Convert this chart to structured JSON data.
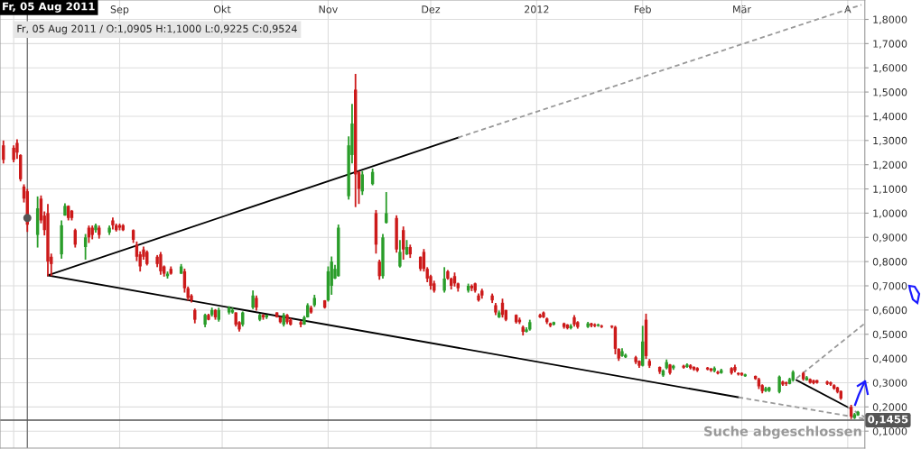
{
  "chart_data": {
    "type": "candlestick",
    "title": "Fr, 05 Aug 2011",
    "subtitle": "Fr, 05 Aug 2011 / O:1,0905 H:1,1000 L:0,9225 C:0,9524",
    "x": [
      "2011-07-29",
      "2011-08-01",
      "2011-08-02",
      "2011-08-03",
      "2011-08-04",
      "2011-08-05",
      "2011-08-08",
      "2011-08-09",
      "2011-08-10",
      "2011-08-11",
      "2011-08-12",
      "2011-08-15",
      "2011-08-16",
      "2011-08-17",
      "2011-08-18",
      "2011-08-19",
      "2011-08-22",
      "2011-08-23",
      "2011-08-24",
      "2011-08-25",
      "2011-08-26",
      "2011-08-29",
      "2011-08-30",
      "2011-08-31",
      "2011-09-01",
      "2011-09-02",
      "2011-09-05",
      "2011-09-06",
      "2011-09-07",
      "2011-09-08",
      "2011-09-09",
      "2011-09-12",
      "2011-09-13",
      "2011-09-14",
      "2011-09-15",
      "2011-09-16",
      "2011-09-19",
      "2011-09-20",
      "2011-09-21",
      "2011-09-22",
      "2011-09-23",
      "2011-09-26",
      "2011-09-27",
      "2011-09-28",
      "2011-09-29",
      "2011-09-30",
      "2011-10-03",
      "2011-10-04",
      "2011-10-05",
      "2011-10-06",
      "2011-10-07",
      "2011-10-10",
      "2011-10-11",
      "2011-10-12",
      "2011-10-13",
      "2011-10-14",
      "2011-10-17",
      "2011-10-18",
      "2011-10-19",
      "2011-10-20",
      "2011-10-21",
      "2011-10-24",
      "2011-10-25",
      "2011-10-26",
      "2011-10-27",
      "2011-10-28",
      "2011-10-31",
      "2011-11-01",
      "2011-11-02",
      "2011-11-03",
      "2011-11-04",
      "2011-11-07",
      "2011-11-08",
      "2011-11-09",
      "2011-11-10",
      "2011-11-11",
      "2011-11-14",
      "2011-11-15",
      "2011-11-16",
      "2011-11-17",
      "2011-11-18",
      "2011-11-21",
      "2011-11-22",
      "2011-11-23",
      "2011-11-24",
      "2011-11-25",
      "2011-11-28",
      "2011-11-29",
      "2011-11-30",
      "2011-12-01",
      "2011-12-02",
      "2011-12-05",
      "2011-12-06",
      "2011-12-07",
      "2011-12-08",
      "2011-12-09",
      "2011-12-12",
      "2011-12-13",
      "2011-12-14",
      "2011-12-15",
      "2011-12-16",
      "2011-12-19",
      "2011-12-20",
      "2011-12-21",
      "2011-12-22",
      "2011-12-23",
      "2011-12-26",
      "2011-12-27",
      "2011-12-28",
      "2011-12-29",
      "2011-12-30",
      "2012-01-02",
      "2012-01-03",
      "2012-01-04",
      "2012-01-05",
      "2012-01-06",
      "2012-01-09",
      "2012-01-10",
      "2012-01-11",
      "2012-01-12",
      "2012-01-13",
      "2012-01-16",
      "2012-01-17",
      "2012-01-18",
      "2012-01-19",
      "2012-01-20",
      "2012-01-23",
      "2012-01-24",
      "2012-01-25",
      "2012-01-26",
      "2012-01-27",
      "2012-01-30",
      "2012-01-31",
      "2012-02-01",
      "2012-02-02",
      "2012-02-03",
      "2012-02-06",
      "2012-02-07",
      "2012-02-08",
      "2012-02-09",
      "2012-02-10",
      "2012-02-13",
      "2012-02-14",
      "2012-02-15",
      "2012-02-16",
      "2012-02-17",
      "2012-02-20",
      "2012-02-21",
      "2012-02-22",
      "2012-02-23",
      "2012-02-24",
      "2012-02-27",
      "2012-02-28",
      "2012-02-29",
      "2012-03-01",
      "2012-03-02",
      "2012-03-05",
      "2012-03-06",
      "2012-03-07",
      "2012-03-08",
      "2012-03-09",
      "2012-03-12",
      "2012-03-13",
      "2012-03-14",
      "2012-03-15",
      "2012-03-16",
      "2012-03-19",
      "2012-03-20",
      "2012-03-21",
      "2012-03-22",
      "2012-03-23",
      "2012-03-26",
      "2012-03-27",
      "2012-03-28",
      "2012-03-29",
      "2012-03-30",
      "2012-04-02",
      "2012-04-03",
      "2012-04-04"
    ],
    "ohlc": [
      [
        1.28,
        1.3,
        1.205,
        1.22
      ],
      [
        1.27,
        1.28,
        1.21,
        1.22
      ],
      [
        1.29,
        1.305,
        1.224,
        1.25
      ],
      [
        1.24,
        1.243,
        1.131,
        1.14
      ],
      [
        1.11,
        1.119,
        1.044,
        1.06
      ],
      [
        1.0905,
        1.1,
        0.9225,
        0.9524
      ],
      [
        0.91,
        1.069,
        0.858,
        1.02
      ],
      [
        1.06,
        1.073,
        0.958,
        0.97
      ],
      [
        0.99,
        1.007,
        0.908,
        0.93
      ],
      [
        1.0,
        1.038,
        0.74,
        0.8
      ],
      [
        0.82,
        0.833,
        0.74,
        0.79
      ],
      [
        0.83,
        0.97,
        0.812,
        0.95
      ],
      [
        0.99,
        1.041,
        0.989,
        1.03
      ],
      [
        1.03,
        1.032,
        0.97,
        0.98
      ],
      [
        1.01,
        1.013,
        0.97,
        0.98
      ],
      [
        0.93,
        0.936,
        0.858,
        0.87
      ],
      [
        0.86,
        0.914,
        0.808,
        0.9
      ],
      [
        0.94,
        0.949,
        0.877,
        0.9
      ],
      [
        0.94,
        0.949,
        0.892,
        0.91
      ],
      [
        0.93,
        0.957,
        0.92,
        0.95
      ],
      [
        0.94,
        0.949,
        0.895,
        0.91
      ],
      [
        0.92,
        0.949,
        0.91,
        0.94
      ],
      [
        0.97,
        0.982,
        0.933,
        0.95
      ],
      [
        0.95,
        0.957,
        0.924,
        0.93
      ],
      [
        0.95,
        0.957,
        0.929,
        0.94
      ],
      [
        0.95,
        0.955,
        0.926,
        0.93
      ],
      [
        0.93,
        0.933,
        0.877,
        0.89
      ],
      [
        0.87,
        0.883,
        0.802,
        0.82
      ],
      [
        0.83,
        0.842,
        0.759,
        0.78
      ],
      [
        0.85,
        0.862,
        0.808,
        0.82
      ],
      [
        0.84,
        0.846,
        0.784,
        0.79
      ],
      [
        0.82,
        0.827,
        0.777,
        0.79
      ],
      [
        0.83,
        0.84,
        0.746,
        0.76
      ],
      [
        0.78,
        0.784,
        0.738,
        0.75
      ],
      [
        0.74,
        0.759,
        0.73,
        0.75
      ],
      [
        0.77,
        0.78,
        0.746,
        0.75
      ],
      [
        0.75,
        0.79,
        0.749,
        0.78
      ],
      [
        0.76,
        0.771,
        0.672,
        0.69
      ],
      [
        0.69,
        0.697,
        0.639,
        0.65
      ],
      [
        0.66,
        0.666,
        0.631,
        0.64
      ],
      [
        0.6,
        0.606,
        0.545,
        0.56
      ],
      [
        0.54,
        0.585,
        0.529,
        0.58
      ],
      [
        0.58,
        0.585,
        0.558,
        0.56
      ],
      [
        0.58,
        0.61,
        0.573,
        0.6
      ],
      [
        0.6,
        0.604,
        0.56,
        0.57
      ],
      [
        0.56,
        0.61,
        0.552,
        0.6
      ],
      [
        0.59,
        0.616,
        0.582,
        0.61
      ],
      [
        0.59,
        0.61,
        0.585,
        0.6
      ],
      [
        0.59,
        0.591,
        0.532,
        0.54
      ],
      [
        0.55,
        0.554,
        0.511,
        0.52
      ],
      [
        0.54,
        0.594,
        0.532,
        0.59
      ],
      [
        0.61,
        0.681,
        0.604,
        0.66
      ],
      [
        0.65,
        0.66,
        0.598,
        0.61
      ],
      [
        0.56,
        0.585,
        0.554,
        0.58
      ],
      [
        0.58,
        0.583,
        0.56,
        0.57
      ],
      [
        0.57,
        0.581,
        0.563,
        0.58
      ],
      [
        0.59,
        0.591,
        0.569,
        0.57
      ],
      [
        0.57,
        0.573,
        0.545,
        0.55
      ],
      [
        0.54,
        0.588,
        0.532,
        0.58
      ],
      [
        0.58,
        0.584,
        0.542,
        0.55
      ],
      [
        0.56,
        0.567,
        0.536,
        0.54
      ],
      [
        0.55,
        0.556,
        0.529,
        0.54
      ],
      [
        0.54,
        0.576,
        0.539,
        0.57
      ],
      [
        0.57,
        0.628,
        0.569,
        0.62
      ],
      [
        0.61,
        0.618,
        0.585,
        0.59
      ],
      [
        0.62,
        0.663,
        0.613,
        0.65
      ],
      [
        0.64,
        0.641,
        0.606,
        0.61
      ],
      [
        0.64,
        0.78,
        0.635,
        0.76
      ],
      [
        0.7,
        0.821,
        0.663,
        0.8
      ],
      [
        0.73,
        0.787,
        0.728,
        0.77
      ],
      [
        0.74,
        0.953,
        0.738,
        0.94
      ],
      [
        1.07,
        1.317,
        1.056,
        1.28
      ],
      [
        1.24,
        1.451,
        1.205,
        1.37
      ],
      [
        1.51,
        1.575,
        1.025,
        1.16
      ],
      [
        1.17,
        1.174,
        1.038,
        1.1
      ],
      [
        1.09,
        1.174,
        1.075,
        1.16
      ],
      [
        1.12,
        1.184,
        1.115,
        1.17
      ],
      [
        1.0,
        1.013,
        0.833,
        0.87
      ],
      [
        0.8,
        0.808,
        0.725,
        0.74
      ],
      [
        0.74,
        0.914,
        0.73,
        0.9
      ],
      [
        0.96,
        1.087,
        0.957,
        1.0
      ],
      [
        0.98,
        0.991,
        0.837,
        0.85
      ],
      [
        0.78,
        0.889,
        0.775,
        0.84
      ],
      [
        0.93,
        0.945,
        0.808,
        0.85
      ],
      [
        0.83,
        0.889,
        0.827,
        0.86
      ],
      [
        0.86,
        0.87,
        0.815,
        0.83
      ],
      [
        0.82,
        0.821,
        0.761,
        0.77
      ],
      [
        0.84,
        0.852,
        0.759,
        0.77
      ],
      [
        0.77,
        0.777,
        0.715,
        0.73
      ],
      [
        0.74,
        0.746,
        0.684,
        0.7
      ],
      [
        0.71,
        0.721,
        0.672,
        0.68
      ],
      [
        0.68,
        0.777,
        0.672,
        0.73
      ],
      [
        0.76,
        0.765,
        0.725,
        0.73
      ],
      [
        0.73,
        0.734,
        0.685,
        0.7
      ],
      [
        0.74,
        0.755,
        0.697,
        0.71
      ],
      [
        0.71,
        0.713,
        0.676,
        0.69
      ],
      [
        0.68,
        0.709,
        0.672,
        0.7
      ],
      [
        0.7,
        0.706,
        0.678,
        0.69
      ],
      [
        0.71,
        0.713,
        0.672,
        0.68
      ],
      [
        0.66,
        0.668,
        0.635,
        0.64
      ],
      [
        0.68,
        0.688,
        0.647,
        0.66
      ],
      [
        0.66,
        0.668,
        0.629,
        0.64
      ],
      [
        0.62,
        0.629,
        0.579,
        0.59
      ],
      [
        0.57,
        0.598,
        0.567,
        0.59
      ],
      [
        0.63,
        0.647,
        0.569,
        0.58
      ],
      [
        0.6,
        0.601,
        0.554,
        0.56
      ],
      [
        0.58,
        0.582,
        0.544,
        0.55
      ],
      [
        0.56,
        0.569,
        0.542,
        0.55
      ],
      [
        0.53,
        0.536,
        0.495,
        0.51
      ],
      [
        0.51,
        0.529,
        0.507,
        0.52
      ],
      [
        0.52,
        0.56,
        0.515,
        0.55
      ],
      [
        0.58,
        0.585,
        0.567,
        0.57
      ],
      [
        0.59,
        0.594,
        0.567,
        0.57
      ],
      [
        0.565,
        0.569,
        0.542,
        0.55
      ],
      [
        0.545,
        0.548,
        0.529,
        0.535
      ],
      [
        0.54,
        0.552,
        0.536,
        0.55
      ],
      [
        0.545,
        0.548,
        0.523,
        0.53
      ],
      [
        0.54,
        0.542,
        0.52,
        0.525
      ],
      [
        0.525,
        0.542,
        0.52,
        0.535
      ],
      [
        0.57,
        0.579,
        0.532,
        0.54
      ],
      [
        0.55,
        0.554,
        0.523,
        0.53
      ],
      [
        0.53,
        0.551,
        0.526,
        0.545
      ],
      [
        0.545,
        0.547,
        0.529,
        0.535
      ],
      [
        0.54,
        0.545,
        0.529,
        0.535
      ],
      [
        0.535,
        0.544,
        0.531,
        0.54
      ],
      [
        0.535,
        0.539,
        0.526,
        0.53
      ],
      [
        0.535,
        0.537,
        0.524,
        0.53
      ],
      [
        0.53,
        0.535,
        0.417,
        0.44
      ],
      [
        0.44,
        0.442,
        0.39,
        0.4
      ],
      [
        0.41,
        0.442,
        0.407,
        0.43
      ],
      [
        0.405,
        0.42,
        0.402,
        0.415
      ],
      [
        0.405,
        0.411,
        0.377,
        0.385
      ],
      [
        0.39,
        0.392,
        0.361,
        0.37
      ],
      [
        0.37,
        0.535,
        0.367,
        0.47
      ],
      [
        0.56,
        0.585,
        0.398,
        0.41
      ],
      [
        0.39,
        0.398,
        0.361,
        0.37
      ],
      [
        0.365,
        0.367,
        0.336,
        0.345
      ],
      [
        0.33,
        0.355,
        0.324,
        0.35
      ],
      [
        0.36,
        0.396,
        0.355,
        0.385
      ],
      [
        0.375,
        0.377,
        0.333,
        0.34
      ],
      [
        0.36,
        0.374,
        0.353,
        0.37
      ],
      [
        0.37,
        0.374,
        0.358,
        0.362
      ],
      [
        0.365,
        0.38,
        0.361,
        0.375
      ],
      [
        0.372,
        0.376,
        0.355,
        0.36
      ],
      [
        0.365,
        0.368,
        0.349,
        0.355
      ],
      [
        0.36,
        0.364,
        0.345,
        0.35
      ],
      [
        0.362,
        0.365,
        0.351,
        0.355
      ],
      [
        0.358,
        0.361,
        0.345,
        0.35
      ],
      [
        0.348,
        0.367,
        0.343,
        0.36
      ],
      [
        0.345,
        0.349,
        0.334,
        0.338
      ],
      [
        0.34,
        0.358,
        0.337,
        0.352
      ],
      [
        0.36,
        0.364,
        0.333,
        0.34
      ],
      [
        0.365,
        0.374,
        0.343,
        0.35
      ],
      [
        0.34,
        0.343,
        0.33,
        0.334
      ],
      [
        0.34,
        0.343,
        0.328,
        0.332
      ],
      [
        0.327,
        0.337,
        0.324,
        0.334
      ],
      [
        0.328,
        0.33,
        0.312,
        0.316
      ],
      [
        0.315,
        0.32,
        0.274,
        0.285
      ],
      [
        0.29,
        0.293,
        0.256,
        0.265
      ],
      [
        0.265,
        0.283,
        0.262,
        0.278
      ],
      [
        0.266,
        0.283,
        0.262,
        0.28
      ],
      [
        0.262,
        0.33,
        0.256,
        0.325
      ],
      [
        0.305,
        0.308,
        0.287,
        0.292
      ],
      [
        0.302,
        0.305,
        0.287,
        0.295
      ],
      [
        0.295,
        0.32,
        0.293,
        0.315
      ],
      [
        0.31,
        0.351,
        0.305,
        0.345
      ],
      [
        0.34,
        0.345,
        0.308,
        0.315
      ],
      [
        0.31,
        0.328,
        0.308,
        0.322
      ],
      [
        0.315,
        0.318,
        0.296,
        0.3
      ],
      [
        0.31,
        0.312,
        0.293,
        0.298
      ],
      [
        0.31,
        0.312,
        0.296,
        0.3
      ],
      [
        0.305,
        0.308,
        0.291,
        0.295
      ],
      [
        0.302,
        0.305,
        0.287,
        0.292
      ],
      [
        0.29,
        0.293,
        0.271,
        0.276
      ],
      [
        0.28,
        0.283,
        0.256,
        0.262
      ],
      [
        0.265,
        0.268,
        0.229,
        0.235
      ],
      [
        0.2,
        0.209,
        0.15,
        0.16
      ],
      [
        0.155,
        0.175,
        0.15,
        0.17
      ],
      [
        0.165,
        0.184,
        0.163,
        0.18
      ]
    ],
    "colors": [
      "#cc1a1a",
      "#cc1a1a",
      "#cc1a1a",
      "#cc1a1a",
      "#cc1a1a",
      "#cc1a1a",
      "#2a9d2a",
      "#cc1a1a",
      "#cc1a1a",
      "#cc1a1a",
      "#cc1a1a",
      "#2a9d2a",
      "#2a9d2a",
      "#cc1a1a",
      "#cc1a1a",
      "#cc1a1a",
      "#2a9d2a",
      "#cc1a1a",
      "#cc1a1a",
      "#2a9d2a",
      "#cc1a1a",
      "#2a9d2a",
      "#cc1a1a",
      "#cc1a1a",
      "#cc1a1a",
      "#cc1a1a",
      "#cc1a1a",
      "#cc1a1a",
      "#cc1a1a",
      "#cc1a1a",
      "#cc1a1a",
      "#cc1a1a",
      "#cc1a1a",
      "#cc1a1a",
      "#2a9d2a",
      "#cc1a1a",
      "#2a9d2a",
      "#cc1a1a",
      "#cc1a1a",
      "#cc1a1a",
      "#cc1a1a",
      "#2a9d2a",
      "#cc1a1a",
      "#2a9d2a",
      "#cc1a1a",
      "#2a9d2a",
      "#2a9d2a",
      "#2a9d2a",
      "#cc1a1a",
      "#cc1a1a",
      "#2a9d2a",
      "#2a9d2a",
      "#cc1a1a",
      "#2a9d2a",
      "#cc1a1a",
      "#2a9d2a",
      "#cc1a1a",
      "#cc1a1a",
      "#2a9d2a",
      "#cc1a1a",
      "#cc1a1a",
      "#cc1a1a",
      "#2a9d2a",
      "#2a9d2a",
      "#cc1a1a",
      "#2a9d2a",
      "#cc1a1a",
      "#2a9d2a",
      "#2a9d2a",
      "#2a9d2a",
      "#2a9d2a",
      "#2a9d2a",
      "#2a9d2a",
      "#cc1a1a",
      "#cc1a1a",
      "#2a9d2a",
      "#2a9d2a",
      "#cc1a1a",
      "#cc1a1a",
      "#2a9d2a",
      "#2a9d2a",
      "#cc1a1a",
      "#2a9d2a",
      "#cc1a1a",
      "#2a9d2a",
      "#cc1a1a",
      "#cc1a1a",
      "#cc1a1a",
      "#cc1a1a",
      "#cc1a1a",
      "#cc1a1a",
      "#2a9d2a",
      "#cc1a1a",
      "#cc1a1a",
      "#cc1a1a",
      "#cc1a1a",
      "#2a9d2a",
      "#cc1a1a",
      "#cc1a1a",
      "#cc1a1a",
      "#cc1a1a",
      "#cc1a1a",
      "#cc1a1a",
      "#2a9d2a",
      "#cc1a1a",
      "#cc1a1a",
      "#cc1a1a",
      "#cc1a1a",
      "#cc1a1a",
      "#2a9d2a",
      "#2a9d2a",
      "#cc1a1a",
      "#cc1a1a",
      "#cc1a1a",
      "#cc1a1a",
      "#2a9d2a",
      "#cc1a1a",
      "#cc1a1a",
      "#2a9d2a",
      "#cc1a1a",
      "#cc1a1a",
      "#2a9d2a",
      "#cc1a1a",
      "#cc1a1a",
      "#2a9d2a",
      "#cc1a1a",
      "#cc1a1a",
      "#cc1a1a",
      "#cc1a1a",
      "#2a9d2a",
      "#2a9d2a",
      "#cc1a1a",
      "#cc1a1a",
      "#2a9d2a",
      "#cc1a1a",
      "#cc1a1a",
      "#cc1a1a",
      "#2a9d2a",
      "#2a9d2a",
      "#cc1a1a",
      "#2a9d2a",
      "#cc1a1a",
      "#2a9d2a",
      "#cc1a1a",
      "#cc1a1a",
      "#cc1a1a",
      "#cc1a1a",
      "#cc1a1a",
      "#2a9d2a",
      "#cc1a1a",
      "#2a9d2a",
      "#cc1a1a",
      "#cc1a1a",
      "#cc1a1a",
      "#cc1a1a",
      "#2a9d2a",
      "#cc1a1a",
      "#cc1a1a",
      "#cc1a1a",
      "#2a9d2a",
      "#2a9d2a",
      "#2a9d2a",
      "#cc1a1a",
      "#cc1a1a",
      "#2a9d2a",
      "#2a9d2a",
      "#cc1a1a",
      "#2a9d2a",
      "#cc1a1a",
      "#cc1a1a",
      "#cc1a1a",
      "#cc1a1a",
      "#cc1a1a",
      "#cc1a1a",
      "#cc1a1a",
      "#cc1a1a",
      "#cc1a1a",
      "#2a9d2a",
      "#2a9d2a"
    ],
    "series": [
      {
        "type": "line",
        "x": [
          "2011-08-11",
          "2011-12-09"
        ],
        "values": [
          0.743,
          1.312
        ],
        "color": "#000000",
        "line_style": "solid"
      },
      {
        "type": "line",
        "x": [
          "2011-12-09",
          "2012-04-05"
        ],
        "values": [
          1.312,
          1.86
        ],
        "color": "#999999",
        "line_style": "dashed"
      },
      {
        "type": "line",
        "x": [
          "2011-08-11",
          "2012-02-29"
        ],
        "values": [
          0.743,
          0.24
        ],
        "color": "#000000",
        "line_style": "solid"
      },
      {
        "type": "line",
        "x": [
          "2012-02-29",
          "2012-04-06"
        ],
        "values": [
          0.24,
          0.151
        ],
        "color": "#999999",
        "line_style": "dashed"
      },
      {
        "type": "line",
        "x": [
          "2012-03-17",
          "2012-04-01"
        ],
        "values": [
          0.311,
          0.199
        ],
        "color": "#000000",
        "line_style": "solid"
      },
      {
        "type": "line",
        "x": [
          "2012-04-01",
          "2012-04-06"
        ],
        "values": [
          0.199,
          0.158
        ],
        "color": "#999999",
        "line_style": "dashed"
      },
      {
        "type": "line",
        "x": [
          "2012-03-17",
          "2012-04-06"
        ],
        "values": [
          0.318,
          0.545
        ],
        "color": "#999999",
        "line_style": "dashed"
      },
      {
        "type": "scatter",
        "x": [
          "2011-08-05"
        ],
        "values": [
          0.98
        ],
        "color": "#555555",
        "marker": "circle"
      }
    ],
    "ref_lines": [
      {
        "axis": "x",
        "value": "2011-08-05",
        "color": "#777777"
      },
      {
        "axis": "y",
        "value": 0.1455,
        "label": "0,1455",
        "color": "#555555"
      }
    ],
    "annotations": [
      "Suche abgeschlossen"
    ],
    "xlim": [
      "2011-07-28",
      "2012-04-06"
    ],
    "ylim": [
      0.03,
      1.88
    ],
    "xticks": [
      {
        "value": "2011-08-01",
        "label": null
      },
      {
        "value": "2011-09-01",
        "label": "Sep"
      },
      {
        "value": "2011-10-01",
        "label": "Okt"
      },
      {
        "value": "2011-11-01",
        "label": "Nov"
      },
      {
        "value": "2011-12-01",
        "label": "Dez"
      },
      {
        "value": "2012-01-01",
        "label": "2012"
      },
      {
        "value": "2012-02-01",
        "label": "Feb"
      },
      {
        "value": "2012-03-01",
        "label": "Mär"
      },
      {
        "value": "2012-04-01",
        "label": "A"
      }
    ],
    "yticks": [
      {
        "value": 0.1,
        "label": "0,1000"
      },
      {
        "value": 0.2,
        "label": "0,2000"
      },
      {
        "value": 0.3,
        "label": "0,3000"
      },
      {
        "value": 0.4,
        "label": "0,4000"
      },
      {
        "value": 0.5,
        "label": "0,5000"
      },
      {
        "value": 0.6,
        "label": "0,6000"
      },
      {
        "value": 0.7,
        "label": "0,7000"
      },
      {
        "value": 0.8,
        "label": "0,8000"
      },
      {
        "value": 0.9,
        "label": "0,9000"
      },
      {
        "value": 1.0,
        "label": "1,0000"
      },
      {
        "value": 1.1,
        "label": "1,1000"
      },
      {
        "value": 1.2,
        "label": "1,2000"
      },
      {
        "value": 1.3,
        "label": "1,3000"
      },
      {
        "value": 1.4,
        "label": "1,4000"
      },
      {
        "value": 1.5,
        "label": "1,5000"
      },
      {
        "value": 1.6,
        "label": "1,6000"
      },
      {
        "value": 1.7,
        "label": "1,7000"
      },
      {
        "value": 1.8,
        "label": "1,8000"
      }
    ],
    "grid": true
  }
}
